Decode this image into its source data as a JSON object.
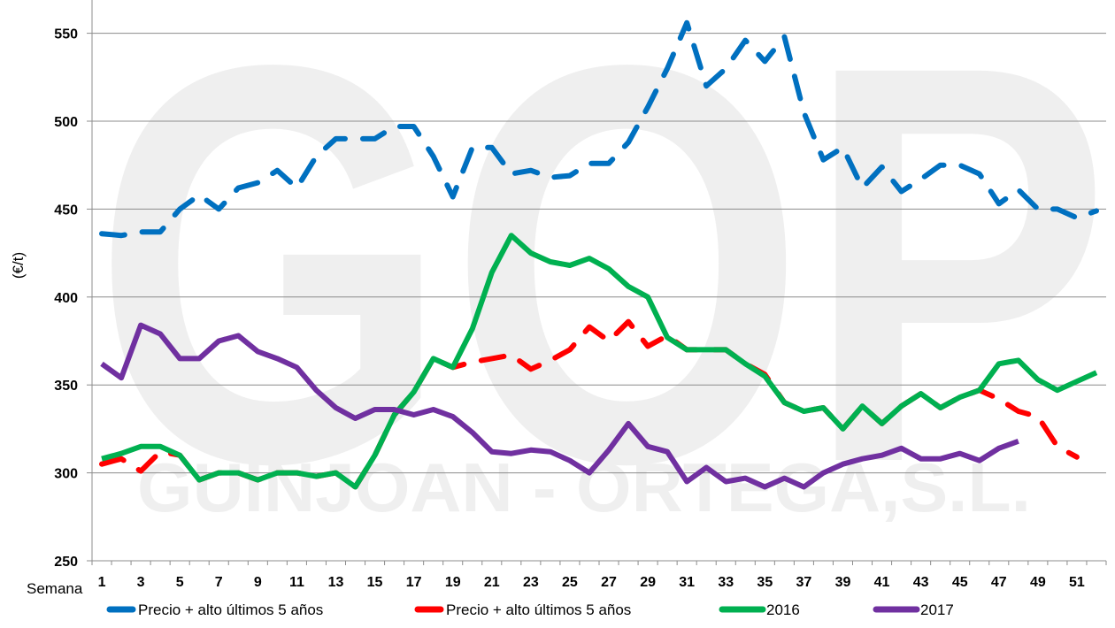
{
  "watermark": {
    "big": "GOP",
    "small": "GUINJOAN - ORTEGA,S.L."
  },
  "chart_data": {
    "type": "line",
    "title": "",
    "xlabel": "Semana",
    "ylabel": "(€/t)",
    "ylim": [
      250,
      568
    ],
    "yticks": [
      250,
      300,
      350,
      400,
      450,
      500,
      550
    ],
    "xtick_labels": [
      "1",
      "3",
      "5",
      "7",
      "9",
      "11",
      "13",
      "15",
      "17",
      "19",
      "21",
      "23",
      "25",
      "27",
      "29",
      "31",
      "33",
      "35",
      "37",
      "39",
      "41",
      "43",
      "45",
      "47",
      "49",
      "51"
    ],
    "x": [
      1,
      2,
      3,
      4,
      5,
      6,
      7,
      8,
      9,
      10,
      11,
      12,
      13,
      14,
      15,
      16,
      17,
      18,
      19,
      20,
      21,
      22,
      23,
      24,
      25,
      26,
      27,
      28,
      29,
      30,
      31,
      32,
      33,
      34,
      35,
      36,
      37,
      38,
      39,
      40,
      41,
      42,
      43,
      44,
      45,
      46,
      47,
      48,
      49,
      50,
      51,
      52
    ],
    "grid": true,
    "legend_position": "bottom",
    "series": [
      {
        "name": "Precio + alto últimos 5 años",
        "color": "#0070C0",
        "style": "dashed",
        "values": [
          436,
          435,
          437,
          437,
          450,
          458,
          450,
          462,
          465,
          472,
          462,
          480,
          490,
          490,
          490,
          497,
          497,
          480,
          457,
          485,
          485,
          470,
          472,
          468,
          469,
          476,
          476,
          488,
          508,
          530,
          556,
          520,
          530,
          546,
          534,
          548,
          505,
          478,
          485,
          462,
          474,
          460,
          467,
          475,
          475,
          470,
          453,
          461,
          450,
          450,
          445,
          449
        ]
      },
      {
        "name": "Precio + alto últimos 5 años",
        "color": "#FF0000",
        "style": "dashed",
        "values": [
          305,
          308,
          301,
          312,
          310,
          296,
          300,
          300,
          296,
          300,
          300,
          298,
          300,
          292,
          310,
          333,
          346,
          365,
          360,
          363,
          365,
          367,
          359,
          364,
          370,
          383,
          375,
          386,
          372,
          378,
          370,
          370,
          370,
          362,
          356,
          340,
          335,
          337,
          325,
          338,
          328,
          338,
          345,
          337,
          343,
          347,
          342,
          335,
          332,
          315,
          309,
          null
        ]
      },
      {
        "name": "2016",
        "color": "#00B050",
        "style": "solid",
        "values": [
          308,
          311,
          315,
          315,
          310,
          296,
          300,
          300,
          296,
          300,
          300,
          298,
          300,
          292,
          310,
          333,
          346,
          365,
          360,
          382,
          414,
          435,
          425,
          420,
          418,
          422,
          416,
          406,
          400,
          377,
          370,
          370,
          370,
          362,
          355,
          340,
          335,
          337,
          325,
          338,
          328,
          338,
          345,
          337,
          343,
          347,
          362,
          364,
          353,
          347,
          352,
          357
        ]
      },
      {
        "name": "2017",
        "color": "#7030A0",
        "style": "solid",
        "values": [
          362,
          354,
          384,
          379,
          365,
          365,
          375,
          378,
          369,
          365,
          360,
          347,
          337,
          331,
          336,
          336,
          333,
          336,
          332,
          323,
          312,
          311,
          313,
          312,
          307,
          300,
          313,
          328,
          315,
          312,
          295,
          303,
          295,
          297,
          292,
          297,
          292,
          300,
          305,
          308,
          310,
          314,
          308,
          308,
          311,
          307,
          314,
          318,
          null,
          null,
          null,
          null
        ]
      }
    ]
  }
}
